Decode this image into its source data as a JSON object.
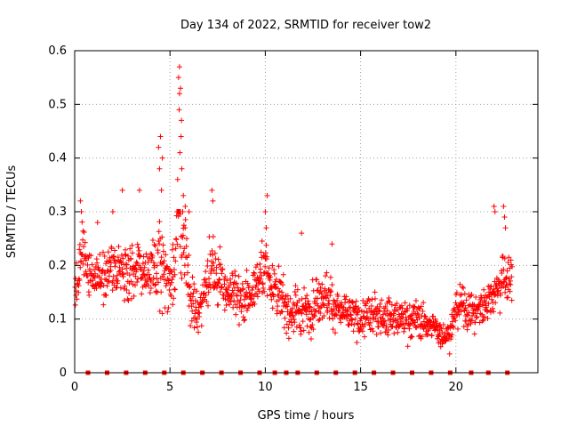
{
  "chart_data": {
    "type": "scatter",
    "title": "Day 134 of 2022, SRMTID for receiver tow2",
    "xlabel": "GPS time / hours",
    "ylabel": "SRMTID / TECUs",
    "xlim": [
      0,
      24.3
    ],
    "ylim": [
      0,
      0.6
    ],
    "xticks": [
      0,
      5,
      10,
      15,
      20
    ],
    "yticks": [
      0,
      0.1,
      0.2,
      0.3,
      0.4,
      0.5,
      0.6
    ],
    "xtick_labels": [
      "0",
      "5",
      "10",
      "15",
      "20"
    ],
    "ytick_labels": [
      "0",
      "0.1",
      "0.2",
      "0.3",
      "0.4",
      "0.5",
      "0.6"
    ],
    "grid": true,
    "colors": {
      "points": "#ff0000",
      "grid": "#a0a0a0",
      "axis": "#000000"
    },
    "marker": "plus",
    "zero_points_x": [
      0.7,
      1.7,
      2.7,
      3.7,
      4.7,
      5.7,
      6.7,
      7.7,
      8.7,
      9.7,
      10.5,
      11.1,
      11.7,
      12.7,
      13.7,
      14.7,
      15.7,
      16.7,
      17.7,
      18.7,
      19.7,
      20.8,
      21.7,
      22.7
    ],
    "activity_profile": [
      {
        "t": 0.0,
        "mean": 0.15,
        "spread": 0.04
      },
      {
        "t": 0.4,
        "mean": 0.22,
        "spread": 0.06
      },
      {
        "t": 1.0,
        "mean": 0.18,
        "spread": 0.05
      },
      {
        "t": 2.0,
        "mean": 0.19,
        "spread": 0.05
      },
      {
        "t": 3.0,
        "mean": 0.2,
        "spread": 0.06
      },
      {
        "t": 4.0,
        "mean": 0.17,
        "spread": 0.06
      },
      {
        "t": 4.5,
        "mean": 0.22,
        "spread": 0.1
      },
      {
        "t": 5.0,
        "mean": 0.16,
        "spread": 0.06
      },
      {
        "t": 5.5,
        "mean": 0.3,
        "spread": 0.14
      },
      {
        "t": 6.0,
        "mean": 0.15,
        "spread": 0.07
      },
      {
        "t": 6.5,
        "mean": 0.1,
        "spread": 0.04
      },
      {
        "t": 7.0,
        "mean": 0.2,
        "spread": 0.07
      },
      {
        "t": 8.0,
        "mean": 0.16,
        "spread": 0.05
      },
      {
        "t": 9.0,
        "mean": 0.13,
        "spread": 0.05
      },
      {
        "t": 10.0,
        "mean": 0.2,
        "spread": 0.06
      },
      {
        "t": 11.0,
        "mean": 0.12,
        "spread": 0.05
      },
      {
        "t": 12.0,
        "mean": 0.11,
        "spread": 0.05
      },
      {
        "t": 13.0,
        "mean": 0.15,
        "spread": 0.05
      },
      {
        "t": 14.0,
        "mean": 0.11,
        "spread": 0.04
      },
      {
        "t": 15.0,
        "mean": 0.1,
        "spread": 0.04
      },
      {
        "t": 16.0,
        "mean": 0.11,
        "spread": 0.04
      },
      {
        "t": 17.0,
        "mean": 0.1,
        "spread": 0.04
      },
      {
        "t": 18.0,
        "mean": 0.1,
        "spread": 0.04
      },
      {
        "t": 19.0,
        "mean": 0.08,
        "spread": 0.03
      },
      {
        "t": 19.6,
        "mean": 0.07,
        "spread": 0.03
      },
      {
        "t": 20.2,
        "mean": 0.13,
        "spread": 0.04
      },
      {
        "t": 21.0,
        "mean": 0.11,
        "spread": 0.04
      },
      {
        "t": 22.0,
        "mean": 0.15,
        "spread": 0.05
      },
      {
        "t": 22.5,
        "mean": 0.18,
        "spread": 0.07
      },
      {
        "t": 22.9,
        "mean": 0.17,
        "spread": 0.04
      }
    ],
    "notable_points": [
      {
        "x": 0.3,
        "y": 0.32
      },
      {
        "x": 0.35,
        "y": 0.3
      },
      {
        "x": 1.2,
        "y": 0.28
      },
      {
        "x": 2.0,
        "y": 0.3
      },
      {
        "x": 2.5,
        "y": 0.34
      },
      {
        "x": 3.4,
        "y": 0.34
      },
      {
        "x": 4.4,
        "y": 0.42
      },
      {
        "x": 4.5,
        "y": 0.44
      },
      {
        "x": 4.45,
        "y": 0.38
      },
      {
        "x": 4.6,
        "y": 0.4
      },
      {
        "x": 4.55,
        "y": 0.34
      },
      {
        "x": 5.5,
        "y": 0.57
      },
      {
        "x": 5.45,
        "y": 0.55
      },
      {
        "x": 5.55,
        "y": 0.53
      },
      {
        "x": 5.5,
        "y": 0.52
      },
      {
        "x": 5.48,
        "y": 0.49
      },
      {
        "x": 5.6,
        "y": 0.47
      },
      {
        "x": 5.58,
        "y": 0.44
      },
      {
        "x": 5.52,
        "y": 0.41
      },
      {
        "x": 5.62,
        "y": 0.38
      },
      {
        "x": 5.4,
        "y": 0.36
      },
      {
        "x": 5.7,
        "y": 0.33
      },
      {
        "x": 5.8,
        "y": 0.31
      },
      {
        "x": 6.0,
        "y": 0.3
      },
      {
        "x": 7.2,
        "y": 0.34
      },
      {
        "x": 7.25,
        "y": 0.32
      },
      {
        "x": 10.1,
        "y": 0.33
      },
      {
        "x": 10.0,
        "y": 0.3
      },
      {
        "x": 10.05,
        "y": 0.27
      },
      {
        "x": 11.9,
        "y": 0.26
      },
      {
        "x": 13.5,
        "y": 0.24
      },
      {
        "x": 22.0,
        "y": 0.31
      },
      {
        "x": 22.05,
        "y": 0.3
      },
      {
        "x": 22.5,
        "y": 0.31
      },
      {
        "x": 22.55,
        "y": 0.29
      },
      {
        "x": 22.6,
        "y": 0.27
      }
    ]
  }
}
